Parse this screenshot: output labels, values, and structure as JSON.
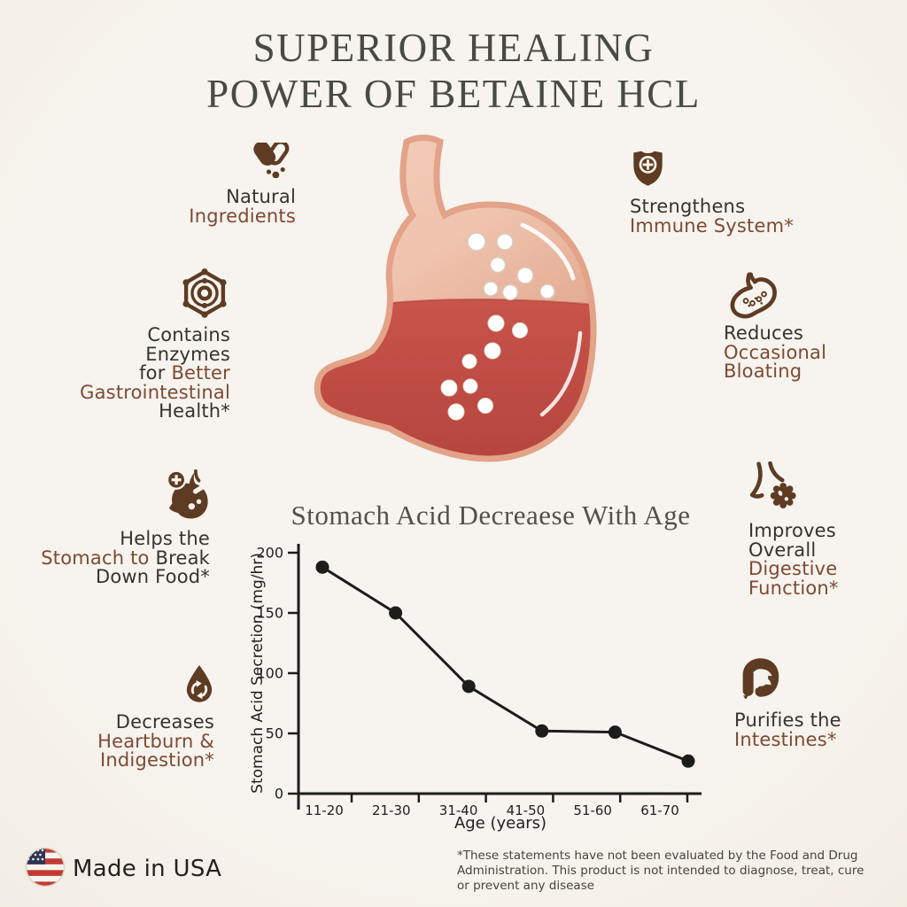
{
  "title": {
    "line1": "SUPERIOR HEALING",
    "line2": "POWER OF BETAINE HCL"
  },
  "features": [
    {
      "id": "natural-ingredients",
      "icon": "pills-icon",
      "lines": [
        [
          {
            "t": "Natural",
            "tone": "dark"
          }
        ],
        [
          {
            "t": "Ingredients",
            "tone": "brown"
          }
        ]
      ]
    },
    {
      "id": "strengthens-immune",
      "icon": "shield-plus-icon",
      "lines": [
        [
          {
            "t": "Strengthens",
            "tone": "dark"
          }
        ],
        [
          {
            "t": "Immune System*",
            "tone": "brown"
          }
        ]
      ]
    },
    {
      "id": "contains-enzymes",
      "icon": "enzymes-icon",
      "lines": [
        [
          {
            "t": "Contains",
            "tone": "dark"
          }
        ],
        [
          {
            "t": "Enzymes",
            "tone": "dark"
          }
        ],
        [
          {
            "t": "for ",
            "tone": "dark"
          },
          {
            "t": "Better",
            "tone": "brown"
          }
        ],
        [
          {
            "t": "Gastrointestinal",
            "tone": "brown"
          }
        ],
        [
          {
            "t": "Health*",
            "tone": "dark"
          }
        ]
      ]
    },
    {
      "id": "reduces-bloating",
      "icon": "stomach-bloating-icon",
      "lines": [
        [
          {
            "t": "Reduces",
            "tone": "dark"
          }
        ],
        [
          {
            "t": "Occasional",
            "tone": "brown"
          }
        ],
        [
          {
            "t": "Bloating",
            "tone": "brown"
          }
        ]
      ]
    },
    {
      "id": "helps-stomach",
      "icon": "stomach-cross-icon",
      "lines": [
        [
          {
            "t": "Helps the",
            "tone": "dark"
          }
        ],
        [
          {
            "t": "Stomach to ",
            "tone": "brown"
          },
          {
            "t": "Break",
            "tone": "dark"
          }
        ],
        [
          {
            "t": "Down Food*",
            "tone": "dark"
          }
        ]
      ]
    },
    {
      "id": "improves-digestive",
      "icon": "digestive-function-icon",
      "lines": [
        [
          {
            "t": "Improves",
            "tone": "dark"
          }
        ],
        [
          {
            "t": "Overall",
            "tone": "dark"
          }
        ],
        [
          {
            "t": "Digestive",
            "tone": "brown"
          }
        ],
        [
          {
            "t": "Function*",
            "tone": "brown"
          }
        ]
      ]
    },
    {
      "id": "decreases-heartburn",
      "icon": "water-drop-cycle-icon",
      "lines": [
        [
          {
            "t": "Decreases",
            "tone": "dark"
          }
        ],
        [
          {
            "t": "Heartburn &",
            "tone": "brown"
          }
        ],
        [
          {
            "t": "Indigestion*",
            "tone": "brown"
          }
        ]
      ]
    },
    {
      "id": "purifies-intestines",
      "icon": "intestines-icon",
      "lines": [
        [
          {
            "t": "Purifies the",
            "tone": "dark"
          }
        ],
        [
          {
            "t": "Intestines*",
            "tone": "brown"
          }
        ]
      ]
    }
  ],
  "chart_data": {
    "type": "line",
    "title": "Stomach Acid Decreaese With Age",
    "categories": [
      "11-20",
      "21-30",
      "31-40",
      "41-50",
      "51-60",
      "61-70"
    ],
    "values": [
      188,
      150,
      89,
      52,
      51,
      27
    ],
    "xlabel": "Age (years)",
    "ylabel": "Stomach Acid Secretion (mg/hr)",
    "ylim": [
      0,
      200
    ],
    "yticks": [
      0,
      50,
      100,
      150,
      200
    ],
    "grid": false,
    "legend": "none",
    "line_color": "#1c1c1c",
    "marker": "circle"
  },
  "footer": {
    "flag_icon": "usa-flag-icon",
    "made_in": "Made in USA",
    "disclaimer": "*These statements have not been evaluated by the Food and Drug Administration. This product is not intended to diagnose, treat, cure or prevent any disease"
  },
  "colors": {
    "background": "#f5f1ea",
    "icon_brown": "#5e3b23",
    "text_brown": "#7d4a33",
    "text_dark": "#37322d",
    "title_olive": "#474b40",
    "acid_red": "#c4504a",
    "stomach_pink": "#efc3ae",
    "flag_red": "#c23b32",
    "flag_blue": "#2f3356"
  }
}
